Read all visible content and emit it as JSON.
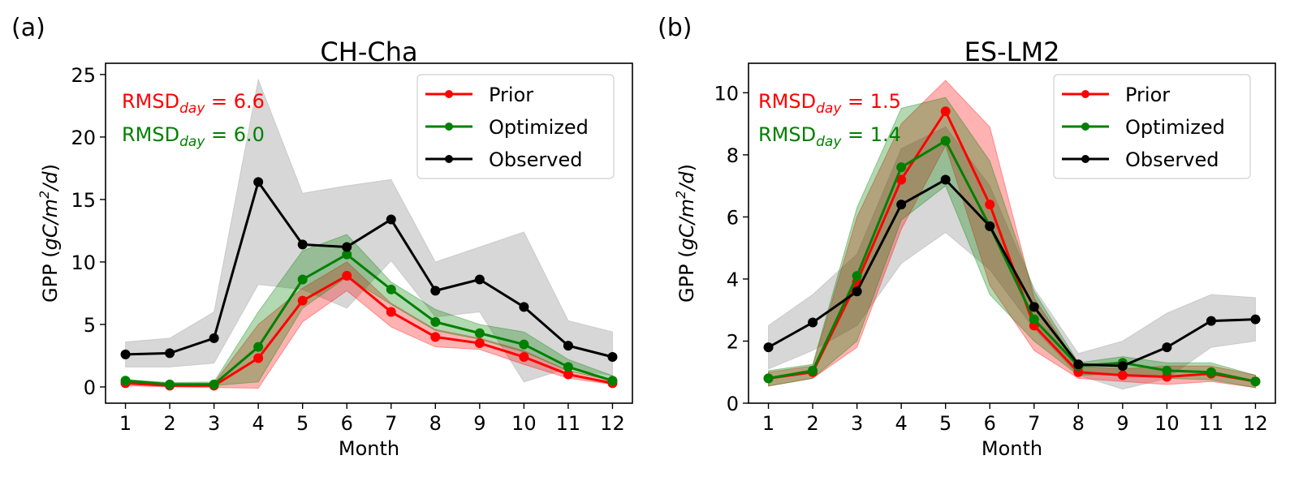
{
  "chart_data": [
    {
      "type": "line",
      "panel_label": "(a)",
      "title": "CH-Cha",
      "xlabel": "Month",
      "ylabel": "GPP (gC/m²/d)",
      "ylabel_parts": {
        "prefix": "GPP (",
        "italic": "gC/m",
        "sup": "2",
        "italic2": "/d",
        "suffix": ")"
      },
      "x": [
        1,
        2,
        3,
        4,
        5,
        6,
        7,
        8,
        9,
        10,
        11,
        12
      ],
      "xticks": [
        "1",
        "2",
        "3",
        "4",
        "5",
        "6",
        "7",
        "8",
        "9",
        "10",
        "11",
        "12"
      ],
      "yticks": [
        0,
        5,
        10,
        15,
        20,
        25
      ],
      "ylim": [
        -1.3,
        25.9
      ],
      "xlim": [
        0.55,
        12.45
      ],
      "grid": false,
      "legend": {
        "placement": "top-right",
        "entries": [
          "Prior",
          "Optimized",
          "Observed"
        ]
      },
      "annotations": [
        {
          "text_main": "RMSD",
          "text_sub": "day",
          "text_tail": " = 6.6",
          "color": "#ff0000"
        },
        {
          "text_main": "RMSD",
          "text_sub": "day",
          "text_tail": " = 6.0",
          "color": "#008000"
        }
      ],
      "series": [
        {
          "name": "Observed",
          "color": "#000000",
          "values": [
            2.6,
            2.7,
            3.9,
            16.4,
            11.4,
            11.2,
            13.4,
            7.7,
            8.6,
            6.4,
            3.3,
            2.4
          ],
          "band_upper": [
            3.6,
            3.9,
            6.0,
            24.6,
            15.5,
            16.1,
            16.6,
            10.0,
            11.2,
            12.4,
            5.3,
            4.4
          ],
          "band_lower": [
            1.6,
            1.6,
            1.9,
            8.2,
            7.8,
            6.3,
            10.1,
            5.6,
            6.0,
            0.4,
            1.5,
            0.9
          ],
          "band_color": "#b0b0b0"
        },
        {
          "name": "Prior",
          "color": "#ff0000",
          "values": [
            0.3,
            0.1,
            0.1,
            2.3,
            6.9,
            8.9,
            6.0,
            4.0,
            3.5,
            2.4,
            1.0,
            0.3
          ],
          "band_upper": [
            0.5,
            0.3,
            0.3,
            5.0,
            7.9,
            10.0,
            6.7,
            4.6,
            3.9,
            2.9,
            1.3,
            0.5
          ],
          "band_lower": [
            0.1,
            0.0,
            -0.05,
            -0.1,
            5.2,
            7.7,
            4.8,
            3.2,
            3.0,
            1.8,
            0.7,
            0.2
          ],
          "band_color": "#ff0000"
        },
        {
          "name": "Optimized",
          "color": "#008000",
          "values": [
            0.5,
            0.2,
            0.2,
            3.2,
            8.6,
            10.6,
            7.8,
            5.2,
            4.3,
            3.4,
            1.6,
            0.5
          ],
          "band_upper": [
            0.6,
            0.35,
            0.4,
            6.0,
            10.9,
            12.2,
            8.4,
            6.2,
            5.0,
            4.4,
            2.2,
            0.9
          ],
          "band_lower": [
            0.3,
            0.15,
            0.1,
            0.4,
            6.3,
            8.8,
            6.6,
            4.5,
            3.8,
            2.8,
            1.3,
            0.5
          ],
          "band_color": "#008000"
        }
      ]
    },
    {
      "type": "line",
      "panel_label": "(b)",
      "title": "ES-LM2",
      "xlabel": "Month",
      "ylabel": "GPP (gC/m²/d)",
      "ylabel_parts": {
        "prefix": "GPP (",
        "italic": "gC/m",
        "sup": "2",
        "italic2": "/d",
        "suffix": ")"
      },
      "x": [
        1,
        2,
        3,
        4,
        5,
        6,
        7,
        8,
        9,
        10,
        11,
        12
      ],
      "xticks": [
        "1",
        "2",
        "3",
        "4",
        "5",
        "6",
        "7",
        "8",
        "9",
        "10",
        "11",
        "12"
      ],
      "yticks": [
        0,
        2,
        4,
        6,
        8,
        10
      ],
      "ylim": [
        0,
        10.95
      ],
      "xlim": [
        0.55,
        12.45
      ],
      "grid": false,
      "legend": {
        "placement": "top-right",
        "entries": [
          "Prior",
          "Optimized",
          "Observed"
        ]
      },
      "annotations": [
        {
          "text_main": "RMSD",
          "text_sub": "day",
          "text_tail": " = 1.5",
          "color": "#ff0000"
        },
        {
          "text_main": "RMSD",
          "text_sub": "day",
          "text_tail": " = 1.4",
          "color": "#008000"
        }
      ],
      "series": [
        {
          "name": "Observed",
          "color": "#000000",
          "values": [
            1.8,
            2.6,
            3.6,
            6.4,
            7.2,
            5.7,
            3.1,
            1.25,
            1.2,
            1.8,
            2.65,
            2.7
          ],
          "band_upper": [
            2.5,
            3.5,
            4.8,
            8.2,
            8.9,
            7.0,
            3.7,
            1.6,
            2.0,
            2.9,
            3.5,
            3.4
          ],
          "band_lower": [
            1.1,
            1.7,
            2.5,
            4.5,
            5.5,
            4.3,
            2.4,
            0.9,
            0.45,
            0.8,
            1.8,
            2.0
          ],
          "band_color": "#b0b0b0"
        },
        {
          "name": "Prior",
          "color": "#ff0000",
          "values": [
            0.8,
            1.0,
            3.9,
            7.2,
            9.4,
            6.4,
            2.5,
            1.0,
            0.9,
            0.85,
            0.95,
            0.7
          ],
          "band_upper": [
            1.0,
            1.2,
            6.0,
            9.0,
            10.4,
            8.9,
            3.4,
            1.2,
            1.1,
            1.2,
            1.2,
            0.9
          ],
          "band_lower": [
            0.55,
            0.8,
            1.8,
            5.6,
            8.3,
            3.8,
            1.7,
            0.8,
            0.7,
            0.6,
            0.7,
            0.5
          ],
          "band_color": "#ff0000"
        },
        {
          "name": "Optimized",
          "color": "#008000",
          "values": [
            0.8,
            1.05,
            4.1,
            7.6,
            8.45,
            5.7,
            2.7,
            1.2,
            1.3,
            1.05,
            1.0,
            0.7
          ],
          "band_upper": [
            1.05,
            1.25,
            6.3,
            9.5,
            9.85,
            7.8,
            3.6,
            1.3,
            1.5,
            1.3,
            1.3,
            0.9
          ],
          "band_lower": [
            0.55,
            0.8,
            2.0,
            5.9,
            7.0,
            3.5,
            2.0,
            0.9,
            0.95,
            0.8,
            0.75,
            0.5
          ],
          "band_color": "#008000"
        }
      ]
    }
  ]
}
